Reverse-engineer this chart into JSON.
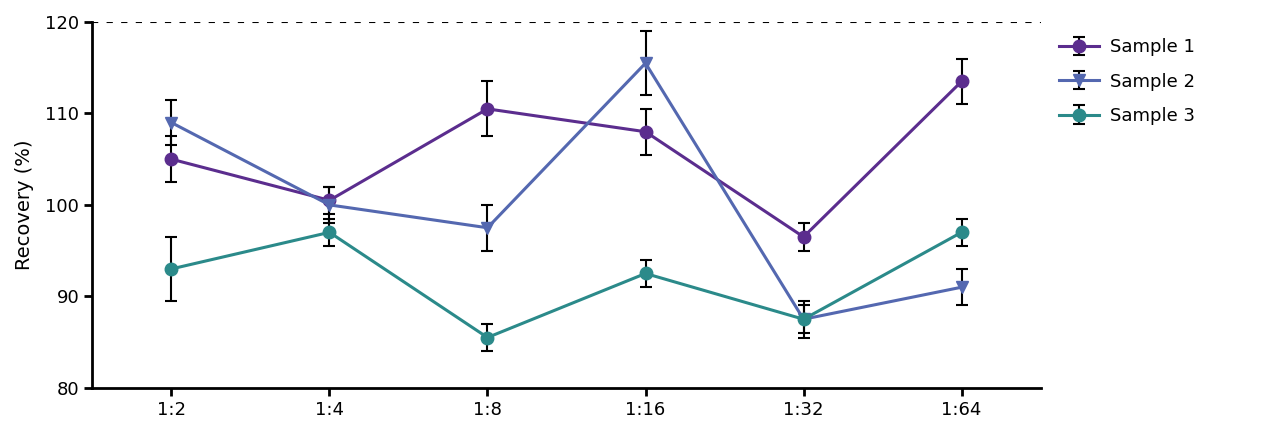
{
  "x_labels": [
    "1:2",
    "1:4",
    "1:8",
    "1:16",
    "1:32",
    "1:64"
  ],
  "x_values": [
    0,
    1,
    2,
    3,
    4,
    5
  ],
  "sample1_y": [
    105.0,
    100.5,
    110.5,
    108.0,
    96.5,
    113.5
  ],
  "sample1_err": [
    2.5,
    1.5,
    3.0,
    2.5,
    1.5,
    2.5
  ],
  "sample2_y": [
    109.0,
    100.0,
    97.5,
    115.5,
    87.5,
    91.0
  ],
  "sample2_err": [
    2.5,
    2.0,
    2.5,
    3.5,
    2.0,
    2.0
  ],
  "sample3_y": [
    93.0,
    97.0,
    85.5,
    92.5,
    87.5,
    97.0
  ],
  "sample3_err": [
    3.5,
    1.5,
    1.5,
    1.5,
    1.5,
    1.5
  ],
  "sample1_color": "#5b2d8e",
  "sample2_color": "#5468b0",
  "sample3_color": "#2b8a8a",
  "ylabel": "Recovery (%)",
  "ylim": [
    80,
    120
  ],
  "yticks": [
    80,
    90,
    100,
    110,
    120
  ],
  "dotted_line_y": 120,
  "legend_labels": [
    "Sample 1",
    "Sample 2",
    "Sample 3"
  ],
  "linewidth": 2.2,
  "marker_size": 9,
  "cap_size": 4,
  "tick_fontsize": 13,
  "label_fontsize": 14,
  "legend_fontsize": 13
}
